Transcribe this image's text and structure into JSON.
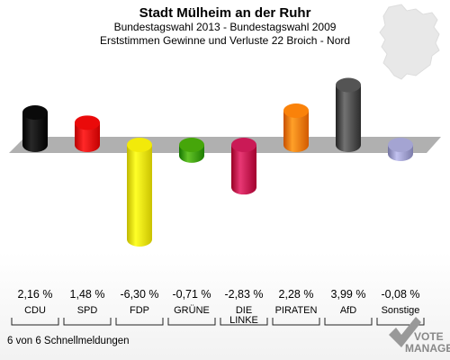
{
  "chart_data": {
    "type": "bar",
    "title": "Stadt Mülheim an der Ruhr",
    "subtitle_1": "Bundestagswahl 2013 - Bundestagswahl 2009",
    "subtitle_2": "Erststimmen Gewinne und Verluste 22 Broich - Nord",
    "categories": [
      "CDU",
      "SPD",
      "FDP",
      "GRÜNE",
      "DIE LINKE",
      "PIRATEN",
      "AfD",
      "Sonstige"
    ],
    "value_labels": [
      "2,16 %",
      "1,48 %",
      "-6,30 %",
      "-0,71 %",
      "-2,83 %",
      "2,28 %",
      "3,99 %",
      "-0,08 %"
    ],
    "values": [
      2.16,
      1.48,
      -6.3,
      -0.71,
      -2.83,
      2.28,
      3.99,
      -0.08
    ],
    "colors": [
      "#000000",
      "#e00000",
      "#e8e000",
      "#3c9c00",
      "#c0104c",
      "#f07800",
      "#4a4a4a",
      "#9a9ac8"
    ]
  },
  "footer": {
    "left": "6 von 6 Schnellmeldungen",
    "logo_top": "VOTE",
    "logo_bottom": "MANAGER"
  }
}
